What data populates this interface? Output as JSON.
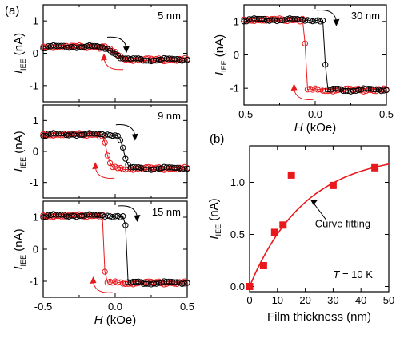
{
  "colors": {
    "up_sweep": "#000000",
    "down_sweep": "#e8191d",
    "fit": "#e8191d",
    "marker": "#e8191d"
  },
  "panel_a_label": "(a)",
  "panel_b_label": "(b)",
  "chart_data": [
    {
      "type": "line",
      "panel": "a",
      "title": "5 nm",
      "ylabel_main": "I",
      "ylabel_sub": "IEE",
      "ylabel_unit": "(nA)",
      "xlim": [
        -0.5,
        0.5
      ],
      "ylim": [
        -1.5,
        1.5
      ],
      "yticks": [
        "1",
        "0",
        "-1"
      ],
      "ytick_values": [
        1,
        0,
        -1
      ],
      "xticks": [],
      "coercive_field": 0.0,
      "saturation": 0.2,
      "transition_width": 0.06,
      "series": [
        {
          "sweep": "down",
          "color": "#e8191d"
        },
        {
          "sweep": "up",
          "color": "#000000"
        }
      ]
    },
    {
      "type": "line",
      "panel": "a",
      "title": "9 nm",
      "ylabel_main": "I",
      "ylabel_sub": "IEE",
      "ylabel_unit": "(nA)",
      "xlim": [
        -0.5,
        0.5
      ],
      "ylim": [
        -1.5,
        1.5
      ],
      "yticks": [
        "1",
        "0",
        "-1"
      ],
      "ytick_values": [
        1,
        0,
        -1
      ],
      "xticks": [],
      "coercive_field": 0.06,
      "saturation": 0.55,
      "transition_width": 0.025,
      "series": [
        {
          "sweep": "down",
          "color": "#e8191d"
        },
        {
          "sweep": "up",
          "color": "#000000"
        }
      ]
    },
    {
      "type": "line",
      "panel": "a",
      "title": "15 nm",
      "ylabel_main": "I",
      "ylabel_sub": "IEE",
      "ylabel_unit": "(nA)",
      "xlim": [
        -0.5,
        0.5
      ],
      "ylim": [
        -1.5,
        1.5
      ],
      "yticks": [
        "1",
        "0",
        "-1"
      ],
      "ytick_values": [
        1,
        0,
        -1
      ],
      "xticks": [
        "-0.5",
        "0.0",
        "0.5"
      ],
      "xtick_values": [
        -0.5,
        0.0,
        0.5
      ],
      "xlabel_main": "H",
      "xlabel_unit": "(kOe)",
      "coercive_field": 0.075,
      "saturation": 1.05,
      "transition_width": 0.004,
      "series": [
        {
          "sweep": "down",
          "color": "#e8191d"
        },
        {
          "sweep": "up",
          "color": "#000000"
        }
      ]
    },
    {
      "type": "line",
      "panel": "a",
      "title": "30 nm",
      "ylabel_main": "I",
      "ylabel_sub": "IEE",
      "ylabel_unit": "(nA)",
      "xlim": [
        -0.5,
        0.5
      ],
      "ylim": [
        -1.5,
        1.5
      ],
      "yticks": [
        "1",
        "0",
        "-1"
      ],
      "ytick_values": [
        1,
        0,
        -1
      ],
      "xticks": [
        "-0.5",
        "0.0",
        "0.5"
      ],
      "xtick_values": [
        -0.5,
        0.0,
        0.5
      ],
      "xlabel_main": "H",
      "xlabel_unit": "(kOe)",
      "coercive_field": 0.07,
      "saturation": 1.05,
      "transition_width": 0.005,
      "series": [
        {
          "sweep": "down",
          "color": "#e8191d"
        },
        {
          "sweep": "up",
          "color": "#000000"
        }
      ]
    },
    {
      "type": "scatter",
      "panel": "b",
      "xlabel": "Film thickness (nm)",
      "ylabel_main": "I",
      "ylabel_sub": "IEE",
      "ylabel_unit": "(nA)",
      "xlim": [
        0,
        50
      ],
      "ylim": [
        -0.05,
        1.35
      ],
      "xticks": [
        "0",
        "10",
        "20",
        "30",
        "40",
        "50"
      ],
      "xtick_values": [
        0,
        10,
        20,
        30,
        40,
        50
      ],
      "yticks": [
        "0.0",
        "0.5",
        "1.0"
      ],
      "ytick_values": [
        0.0,
        0.5,
        1.0
      ],
      "points": {
        "x": [
          0,
          5,
          9,
          12,
          15,
          30,
          45
        ],
        "y": [
          0.0,
          0.2,
          0.52,
          0.59,
          1.07,
          0.97,
          1.14
        ]
      },
      "fit": {
        "label": "Curve fitting",
        "a": 1.28,
        "tau": 20
      },
      "annotation": "T = 10 K",
      "annotation_var": "T",
      "annotation_rest": " = 10 K"
    }
  ]
}
